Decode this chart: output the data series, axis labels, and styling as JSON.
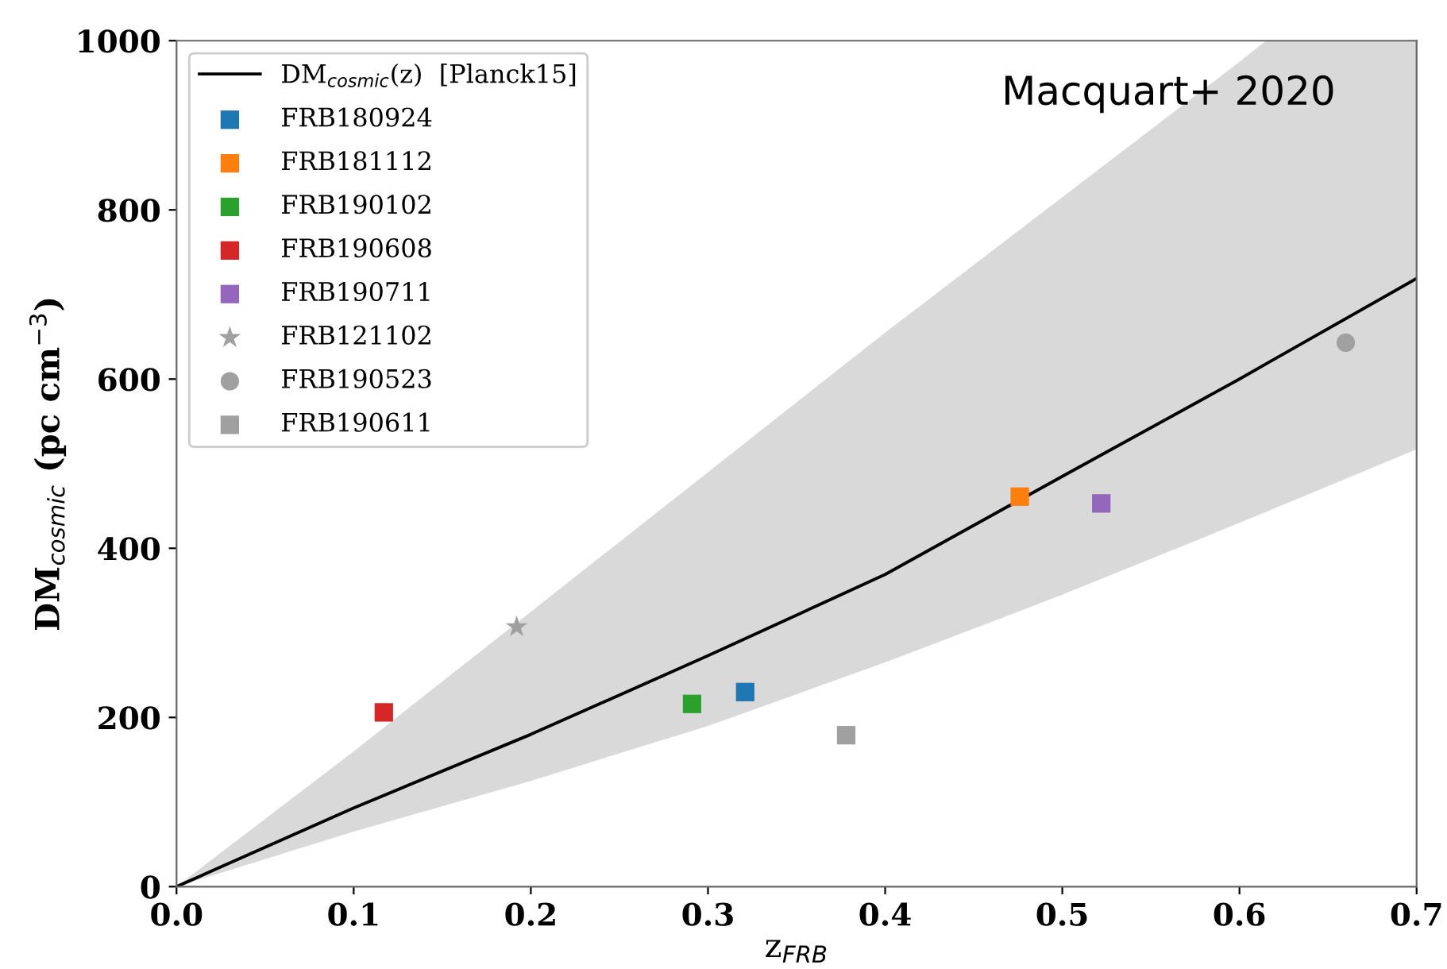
{
  "chart_data": {
    "type": "scatter",
    "xlabel": "z$_{FRB}$",
    "ylabel": "DM$_{cosmic}$ (pc cm$^{−3}$)",
    "annotations": [
      "Macquart+ 2020"
    ],
    "xlim": [
      0,
      0.7
    ],
    "ylim": [
      0,
      1000
    ],
    "xticks": [
      {
        "value": 0,
        "label": "0.0"
      },
      0.1,
      0.2,
      0.3,
      0.4,
      0.5,
      0.6,
      0.7
    ],
    "yticks": [
      0,
      200,
      400,
      600,
      800,
      1000
    ],
    "grid": false,
    "legend": "top left",
    "series": [
      {
        "name": "DM$_{cosmic}$(z)  [Planck15]",
        "type": "line",
        "color": "#000000",
        "marker": "none",
        "line_style": "solid",
        "x": [
          0,
          0.1,
          0.2,
          0.3,
          0.4,
          0.5,
          0.6,
          0.615,
          0.7
        ],
        "values": [
          0,
          93,
          180,
          273,
          369,
          485,
          600,
          618,
          719
        ],
        "lower": [
          0,
          65,
          125,
          190,
          265,
          345,
          430,
          443,
          517
        ],
        "upper": [
          0,
          160,
          325,
          490,
          655,
          815,
          975,
          1000,
          1000
        ]
      },
      {
        "name": "FRB180924",
        "color": "#1f77b4",
        "marker": "square",
        "x": [
          0.321
        ],
        "values": [
          230
        ]
      },
      {
        "name": "FRB181112",
        "color": "#ff7f0e",
        "marker": "square",
        "x": [
          0.476
        ],
        "values": [
          461
        ]
      },
      {
        "name": "FRB190102",
        "color": "#2ca02c",
        "marker": "square",
        "x": [
          0.291
        ],
        "values": [
          216
        ]
      },
      {
        "name": "FRB190608",
        "color": "#d62728",
        "marker": "square",
        "x": [
          0.117
        ],
        "values": [
          206
        ]
      },
      {
        "name": "FRB190711",
        "color": "#9467bd",
        "marker": "square",
        "x": [
          0.522
        ],
        "values": [
          453
        ]
      },
      {
        "name": "FRB121102",
        "color": "#a0a0a0",
        "marker": "star",
        "x": [
          0.192
        ],
        "values": [
          307
        ]
      },
      {
        "name": "FRB190523",
        "color": "#a0a0a0",
        "marker": "circle",
        "x": [
          0.66
        ],
        "values": [
          643
        ]
      },
      {
        "name": "FRB190611",
        "color": "#a0a0a0",
        "marker": "square",
        "x": [
          0.378
        ],
        "values": [
          179
        ]
      }
    ]
  }
}
